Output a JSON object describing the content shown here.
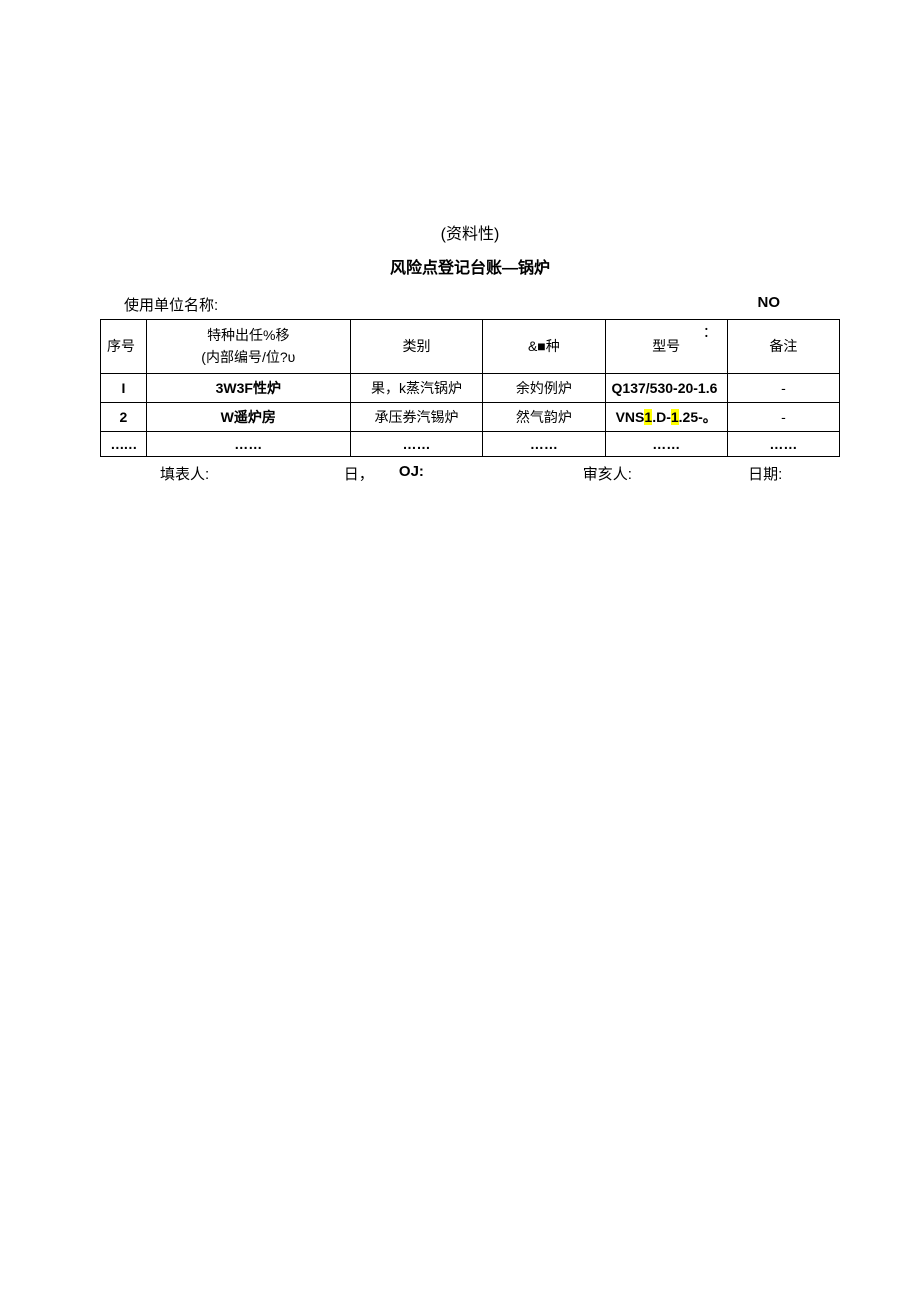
{
  "title_line1": "(资料性)",
  "title_line2": "风险点登记台账—锅炉",
  "meta": {
    "unit_label": "使用单位名称:",
    "no_label": "NO"
  },
  "table": {
    "headers": {
      "seq": "序号",
      "name_line1": "特种出任%移",
      "name_line2": "(内部编号/位?υ",
      "category": "类别",
      "kind": "&■种",
      "model": "型号",
      "colon": "：",
      "remark": "备注"
    },
    "rows": [
      {
        "seq": "I",
        "name": "3W3F性炉",
        "category": "果，k蒸汽锅炉",
        "kind": "余妁例炉",
        "model": "Q137/530-20-1.6",
        "remark": "-"
      },
      {
        "seq": "2",
        "name": "W遥炉房",
        "category": "承压券汽锡炉",
        "kind": "然气韵炉",
        "model_prefix": "VNS",
        "model_hl1": "1",
        "model_mid": ".D-",
        "model_hl2": "1",
        "model_suffix": ".25-。",
        "remark": "-"
      },
      {
        "seq": "……",
        "name": "……",
        "category": "……",
        "kind": "……",
        "model": "……",
        "remark": "……"
      }
    ]
  },
  "footer": {
    "fill_person": "填表人:",
    "day": "日，",
    "oj": "OJ:",
    "reviewer": "审亥人:",
    "date": "日期:"
  }
}
